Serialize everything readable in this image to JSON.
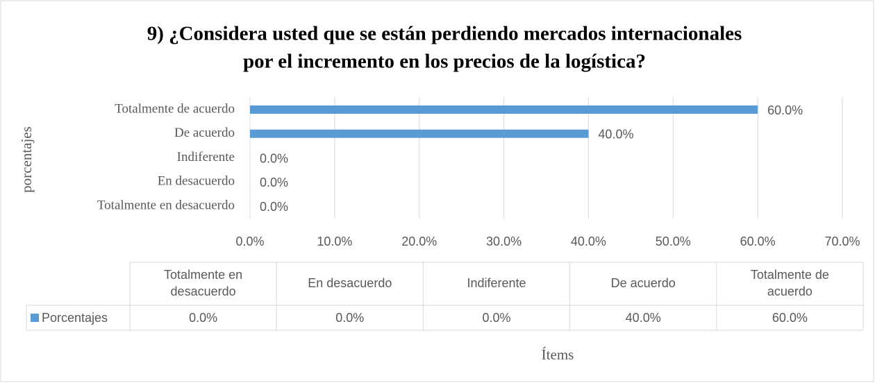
{
  "chart_data": {
    "type": "bar",
    "orientation": "horizontal",
    "title": [
      "9) ¿Considera usted que se están perdiendo mercados internacionales",
      "por el incremento en los precios de la logística?"
    ],
    "y_axis_label": "porcentajes",
    "x_axis_label": "Ítems",
    "categories": [
      "Totalmente en desacuerdo",
      "En desacuerdo",
      "Indiferente",
      "De acuerdo",
      "Totalmente de acuerdo"
    ],
    "table_headers": [
      "Totalmente en\ndesacuerdo",
      "En desacuerdo",
      "Indiferente",
      "De acuerdo",
      "Totalmente de\nacuerdo"
    ],
    "series": [
      {
        "name": "Porcentajes",
        "color": "#5b9bd5",
        "values": [
          0,
          0,
          0,
          40,
          60
        ],
        "value_labels": [
          "0.0%",
          "0.0%",
          "0.0%",
          "40.0%",
          "60.0%"
        ]
      }
    ],
    "xlim": [
      0,
      70
    ],
    "xticks": [
      {
        "value": 0,
        "label": "0.0%"
      },
      {
        "value": 10,
        "label": "10.0%"
      },
      {
        "value": 20,
        "label": "20.0%"
      },
      {
        "value": 30,
        "label": "30.0%"
      },
      {
        "value": 40,
        "label": "40.0%"
      },
      {
        "value": 50,
        "label": "50.0%"
      },
      {
        "value": 60,
        "label": "60.0%"
      },
      {
        "value": 70,
        "label": "70.0%"
      }
    ],
    "grid": true
  }
}
